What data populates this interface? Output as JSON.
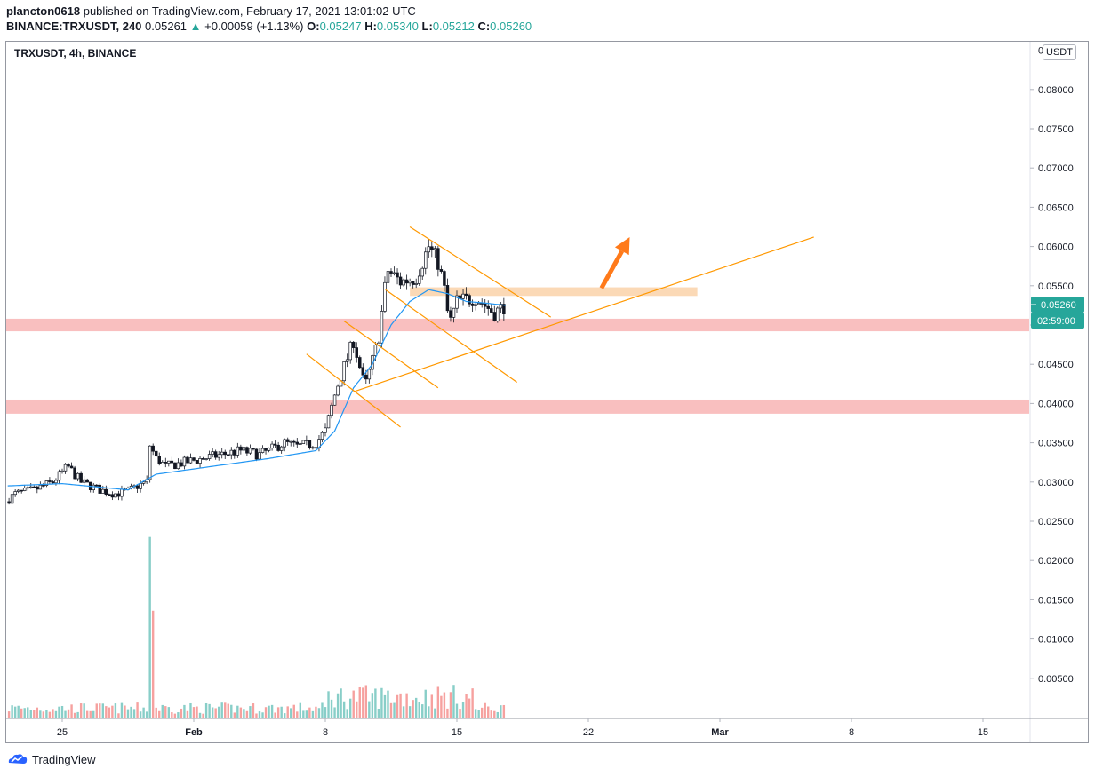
{
  "header": {
    "publisher": "plancton0618",
    "published_text": "published on TradingView.com, February 17, 2021 13:01:02 UTC",
    "symbol_full": "BINANCE:TRXUSDT, 240",
    "last": "0.05261",
    "change": "+0.00059 (+1.13%)",
    "o_label": "O:",
    "o_value": "0.05247",
    "h_label": "H:",
    "h_value": "0.05340",
    "l_label": "L:",
    "l_value": "0.05212",
    "c_label": "C:",
    "c_value": "0.05260"
  },
  "symbol_label": "TRXUSDT, 4h, BINANCE",
  "currency": "USDT",
  "footer": {
    "brand": "TradingView"
  },
  "colors": {
    "up": "#26a69a",
    "down": "#ef5350",
    "ma": "#2196f3",
    "drawing": "#ff9800",
    "zone_red": "#f8b4b4",
    "zone_orange": "#fbd5ae"
  },
  "chart_data": {
    "type": "candlestick",
    "interval": "4h",
    "y_axis": {
      "range": [
        0.0,
        0.0855
      ],
      "ticks": [
        "0.08500",
        "0.08000",
        "0.07500",
        "0.07000",
        "0.06500",
        "0.06000",
        "0.05500",
        "0.05000",
        "0.04500",
        "0.04000",
        "0.03500",
        "0.03000",
        "0.02500",
        "0.02000",
        "0.01500",
        "0.01000",
        "0.00500"
      ],
      "price_label": "0.05260",
      "countdown_label": "02:59:00"
    },
    "x_axis": {
      "ticks": [
        {
          "label": "25",
          "day": 0
        },
        {
          "label": "Feb",
          "day": 7
        },
        {
          "label": "8",
          "day": 14
        },
        {
          "label": "15",
          "day": 21
        },
        {
          "label": "22",
          "day": 28
        },
        {
          "label": "Mar",
          "day": 35
        },
        {
          "label": "8",
          "day": 42
        },
        {
          "label": "15",
          "day": 49
        }
      ]
    },
    "price_waypoints": [
      [
        -3.0,
        0.0275
      ],
      [
        -2.5,
        0.0285
      ],
      [
        -1.5,
        0.029
      ],
      [
        -0.5,
        0.03
      ],
      [
        0.3,
        0.032
      ],
      [
        1.0,
        0.03
      ],
      [
        2.0,
        0.029
      ],
      [
        2.8,
        0.0285
      ],
      [
        3.5,
        0.0288
      ],
      [
        4.0,
        0.0295
      ],
      [
        4.5,
        0.03
      ],
      [
        4.6,
        0.035
      ],
      [
        5.0,
        0.033
      ],
      [
        5.5,
        0.032
      ],
      [
        6.5,
        0.0325
      ],
      [
        7.5,
        0.033
      ],
      [
        8.5,
        0.0335
      ],
      [
        9.5,
        0.034
      ],
      [
        10.5,
        0.0335
      ],
      [
        11.0,
        0.034
      ],
      [
        11.8,
        0.035
      ],
      [
        12.5,
        0.0345
      ],
      [
        13.5,
        0.035
      ],
      [
        14.0,
        0.0365
      ],
      [
        14.6,
        0.042
      ],
      [
        15.5,
        0.048
      ],
      [
        16.1,
        0.042
      ],
      [
        16.8,
        0.048
      ],
      [
        17.3,
        0.057
      ],
      [
        18.0,
        0.0555
      ],
      [
        18.8,
        0.056
      ],
      [
        19.5,
        0.06
      ],
      [
        20.0,
        0.058
      ],
      [
        20.3,
        0.055
      ],
      [
        20.6,
        0.05
      ],
      [
        21.0,
        0.053
      ],
      [
        22.0,
        0.0535
      ],
      [
        23.0,
        0.0515
      ],
      [
        23.6,
        0.0526
      ]
    ],
    "ema": [
      [
        -3.0,
        0.0295
      ],
      [
        0.0,
        0.0298
      ],
      [
        3.5,
        0.029
      ],
      [
        5.0,
        0.031
      ],
      [
        8.0,
        0.032
      ],
      [
        11.0,
        0.033
      ],
      [
        13.5,
        0.034
      ],
      [
        14.5,
        0.0365
      ],
      [
        15.5,
        0.042
      ],
      [
        16.5,
        0.045
      ],
      [
        17.5,
        0.05
      ],
      [
        18.5,
        0.053
      ],
      [
        19.5,
        0.0545
      ],
      [
        20.5,
        0.054
      ],
      [
        21.5,
        0.053
      ],
      [
        22.5,
        0.0528
      ],
      [
        23.6,
        0.0525
      ]
    ],
    "volume_spikes": [
      [
        4.6,
        0.023
      ],
      [
        4.8,
        0.0136
      ]
    ],
    "volume_base": 0.0012,
    "zones": [
      {
        "name": "support-zone-upper",
        "y_low": 0.0492,
        "y_high": 0.0508,
        "x_from_day": -3.0,
        "x_to_day": 55.5
      },
      {
        "name": "support-zone-lower",
        "y_low": 0.0387,
        "y_high": 0.0405,
        "x_from_day": -3.0,
        "x_to_day": 55.5
      },
      {
        "name": "resistance-zone",
        "y_low": 0.0537,
        "y_high": 0.0548,
        "x_from_day": 18.5,
        "x_to_day": 33.8
      }
    ],
    "trendlines": [
      {
        "from": [
          18.5,
          0.0625
        ],
        "to": [
          26.0,
          0.051
        ]
      },
      {
        "from": [
          17.2,
          0.0545
        ],
        "to": [
          24.2,
          0.0427
        ]
      },
      {
        "from": [
          15.0,
          0.0505
        ],
        "to": [
          20.0,
          0.042
        ]
      },
      {
        "from": [
          13.0,
          0.0463
        ],
        "to": [
          18.0,
          0.037
        ]
      },
      {
        "from": [
          15.5,
          0.0415
        ],
        "to": [
          40.0,
          0.0612
        ]
      }
    ],
    "arrow": {
      "from": [
        28.7,
        0.0547
      ],
      "to": [
        30.2,
        0.0612
      ]
    }
  }
}
